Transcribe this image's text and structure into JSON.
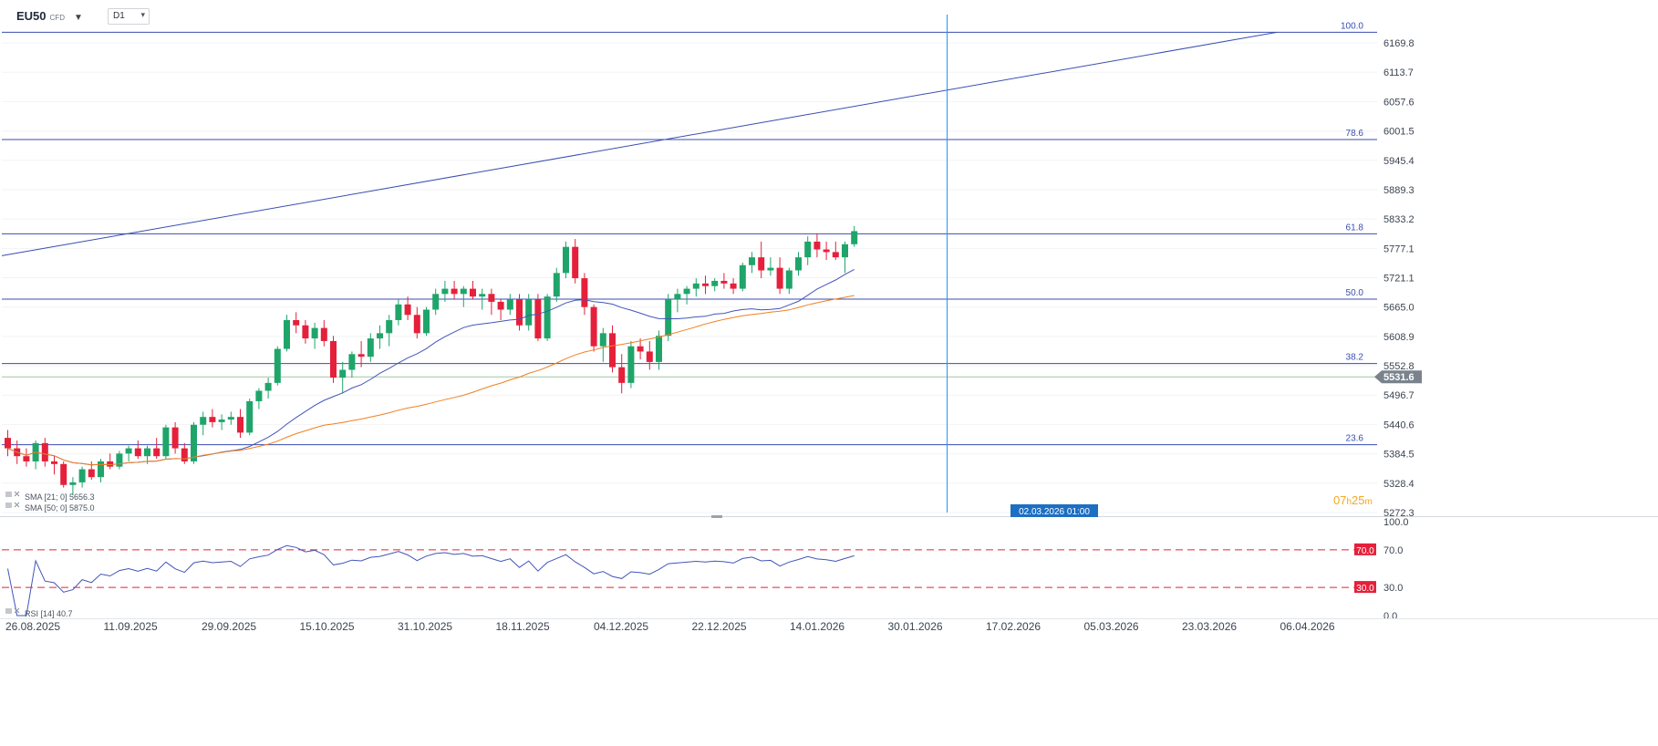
{
  "toolbar": {
    "symbol": "EU50",
    "symbol_type": "CFD",
    "timeframe": "D1"
  },
  "colors": {
    "up": "#1fa56a",
    "down": "#e5203b",
    "sma21": "#4355b8",
    "sma50": "#f08020",
    "drawing": "#3a4db0",
    "crosshair": "#2196f3",
    "rsi": "#4355b8",
    "rsi_level": "#e5203b",
    "last_price_label": "#7a828c",
    "countdown": "#f5a623"
  },
  "price_axis": {
    "ticks": [
      "6169.8",
      "6113.7",
      "6057.6",
      "6001.5",
      "5945.4",
      "5889.3",
      "5833.2",
      "5777.1",
      "5721.1",
      "5665.0",
      "5608.9",
      "5552.8",
      "5496.7",
      "5440.6",
      "5384.5",
      "5328.4",
      "5272.3"
    ],
    "last_price": "5531.6"
  },
  "fibonacci": {
    "levels": [
      {
        "label": "100.0",
        "price": 6190
      },
      {
        "label": "78.6",
        "price": 5985
      },
      {
        "label": "61.8",
        "price": 5805
      },
      {
        "label": "50.0",
        "price": 5680
      },
      {
        "label": "38.2",
        "price": 5557
      },
      {
        "label": "23.6",
        "price": 5402
      }
    ]
  },
  "indicators": {
    "sma21_label": "SMA [21; 0] 5656.3",
    "sma50_label": "SMA [50; 0] 5875.0",
    "rsi_label": "RSI [14] 40.7"
  },
  "crosshair": {
    "date_label": "02.03.2026 01:00",
    "bar_index": 100
  },
  "countdown": {
    "hours": "07",
    "h": "h",
    "minutes": "25",
    "m": "m"
  },
  "rsi_axis": {
    "ticks": [
      "100.0",
      "70.0",
      "30.0",
      "0.0"
    ],
    "upper_level": "70.0",
    "lower_level": "30.0"
  },
  "date_axis": {
    "labels": [
      "26.08.2025",
      "11.09.2025",
      "29.09.2025",
      "15.10.2025",
      "31.10.2025",
      "18.11.2025",
      "04.12.2025",
      "22.12.2025",
      "14.01.2026",
      "30.01.2026",
      "17.02.2026",
      "05.03.2026",
      "23.03.2026",
      "06.04.2026"
    ]
  },
  "chart_data": {
    "type": "candlestick",
    "ohlc": [
      [
        5415,
        5430,
        5380,
        5395
      ],
      [
        5395,
        5410,
        5365,
        5380
      ],
      [
        5380,
        5395,
        5360,
        5370
      ],
      [
        5370,
        5410,
        5355,
        5405
      ],
      [
        5405,
        5415,
        5360,
        5370
      ],
      [
        5370,
        5380,
        5345,
        5365
      ],
      [
        5365,
        5370,
        5320,
        5325
      ],
      [
        5325,
        5340,
        5305,
        5330
      ],
      [
        5330,
        5360,
        5320,
        5355
      ],
      [
        5355,
        5370,
        5335,
        5340
      ],
      [
        5340,
        5375,
        5330,
        5370
      ],
      [
        5370,
        5385,
        5355,
        5360
      ],
      [
        5360,
        5390,
        5355,
        5385
      ],
      [
        5385,
        5400,
        5370,
        5395
      ],
      [
        5395,
        5410,
        5375,
        5380
      ],
      [
        5380,
        5400,
        5365,
        5395
      ],
      [
        5395,
        5415,
        5375,
        5380
      ],
      [
        5380,
        5440,
        5375,
        5435
      ],
      [
        5435,
        5445,
        5385,
        5395
      ],
      [
        5395,
        5405,
        5365,
        5370
      ],
      [
        5370,
        5445,
        5365,
        5440
      ],
      [
        5440,
        5465,
        5420,
        5455
      ],
      [
        5455,
        5470,
        5435,
        5445
      ],
      [
        5445,
        5460,
        5430,
        5450
      ],
      [
        5450,
        5465,
        5440,
        5455
      ],
      [
        5455,
        5470,
        5415,
        5425
      ],
      [
        5425,
        5490,
        5420,
        5485
      ],
      [
        5485,
        5510,
        5470,
        5505
      ],
      [
        5505,
        5530,
        5490,
        5520
      ],
      [
        5520,
        5590,
        5515,
        5585
      ],
      [
        5585,
        5650,
        5580,
        5640
      ],
      [
        5640,
        5655,
        5615,
        5630
      ],
      [
        5630,
        5640,
        5595,
        5605
      ],
      [
        5605,
        5635,
        5585,
        5625
      ],
      [
        5625,
        5640,
        5590,
        5600
      ],
      [
        5600,
        5610,
        5520,
        5530
      ],
      [
        5530,
        5560,
        5500,
        5545
      ],
      [
        5545,
        5580,
        5530,
        5575
      ],
      [
        5575,
        5600,
        5550,
        5570
      ],
      [
        5570,
        5615,
        5560,
        5605
      ],
      [
        5605,
        5630,
        5585,
        5615
      ],
      [
        5615,
        5650,
        5590,
        5640
      ],
      [
        5640,
        5680,
        5630,
        5670
      ],
      [
        5670,
        5685,
        5640,
        5650
      ],
      [
        5650,
        5665,
        5605,
        5615
      ],
      [
        5615,
        5665,
        5610,
        5660
      ],
      [
        5660,
        5700,
        5650,
        5690
      ],
      [
        5690,
        5715,
        5675,
        5700
      ],
      [
        5700,
        5715,
        5680,
        5690
      ],
      [
        5690,
        5705,
        5665,
        5700
      ],
      [
        5700,
        5715,
        5680,
        5685
      ],
      [
        5685,
        5700,
        5660,
        5690
      ],
      [
        5690,
        5700,
        5650,
        5675
      ],
      [
        5675,
        5680,
        5640,
        5660
      ],
      [
        5660,
        5690,
        5650,
        5680
      ],
      [
        5680,
        5690,
        5620,
        5630
      ],
      [
        5630,
        5690,
        5620,
        5680
      ],
      [
        5680,
        5690,
        5600,
        5605
      ],
      [
        5605,
        5690,
        5600,
        5685
      ],
      [
        5685,
        5740,
        5675,
        5730
      ],
      [
        5730,
        5790,
        5720,
        5780
      ],
      [
        5780,
        5795,
        5710,
        5720
      ],
      [
        5720,
        5730,
        5650,
        5665
      ],
      [
        5665,
        5670,
        5580,
        5590
      ],
      [
        5590,
        5625,
        5560,
        5615
      ],
      [
        5615,
        5630,
        5540,
        5550
      ],
      [
        5550,
        5575,
        5500,
        5520
      ],
      [
        5520,
        5600,
        5510,
        5590
      ],
      [
        5590,
        5605,
        5565,
        5580
      ],
      [
        5580,
        5600,
        5545,
        5560
      ],
      [
        5560,
        5620,
        5545,
        5610
      ],
      [
        5610,
        5690,
        5600,
        5680
      ],
      [
        5680,
        5700,
        5655,
        5690
      ],
      [
        5690,
        5705,
        5670,
        5700
      ],
      [
        5700,
        5720,
        5685,
        5710
      ],
      [
        5710,
        5725,
        5690,
        5705
      ],
      [
        5705,
        5720,
        5695,
        5715
      ],
      [
        5715,
        5730,
        5700,
        5710
      ],
      [
        5710,
        5720,
        5690,
        5700
      ],
      [
        5700,
        5750,
        5695,
        5745
      ],
      [
        5745,
        5770,
        5730,
        5760
      ],
      [
        5760,
        5790,
        5720,
        5735
      ],
      [
        5735,
        5760,
        5725,
        5740
      ],
      [
        5740,
        5760,
        5690,
        5700
      ],
      [
        5700,
        5740,
        5690,
        5735
      ],
      [
        5735,
        5770,
        5725,
        5760
      ],
      [
        5760,
        5800,
        5745,
        5790
      ],
      [
        5790,
        5805,
        5760,
        5775
      ],
      [
        5775,
        5790,
        5755,
        5770
      ],
      [
        5770,
        5790,
        5755,
        5760
      ],
      [
        5760,
        5790,
        5730,
        5785
      ],
      [
        5785,
        5820,
        5780,
        5810
      ]
    ]
  }
}
